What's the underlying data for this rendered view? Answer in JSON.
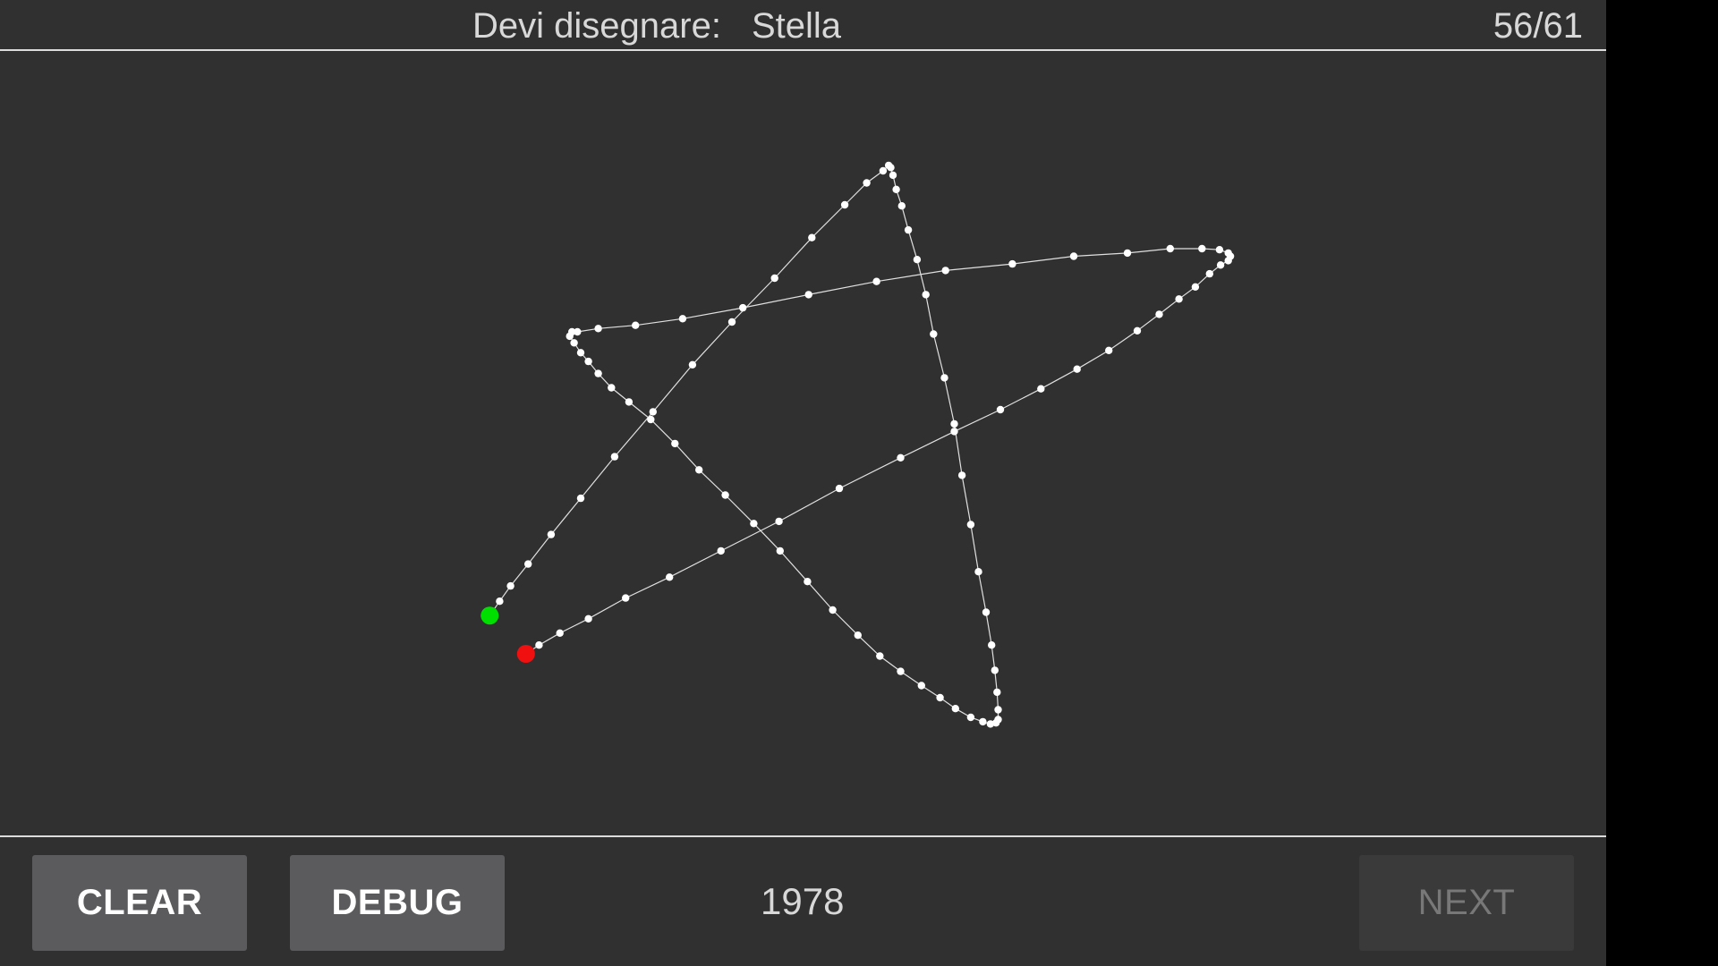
{
  "header": {
    "prompt_label": "Devi disegnare:",
    "target_word": "Stella",
    "progress": "56/61"
  },
  "drawing": {
    "start_color": "#00e000",
    "end_color": "#f01010",
    "stroke_color": "#ffffff"
  },
  "footer": {
    "clear_label": "CLEAR",
    "debug_label": "DEBUG",
    "score": "1978",
    "next_label": "NEXT"
  }
}
